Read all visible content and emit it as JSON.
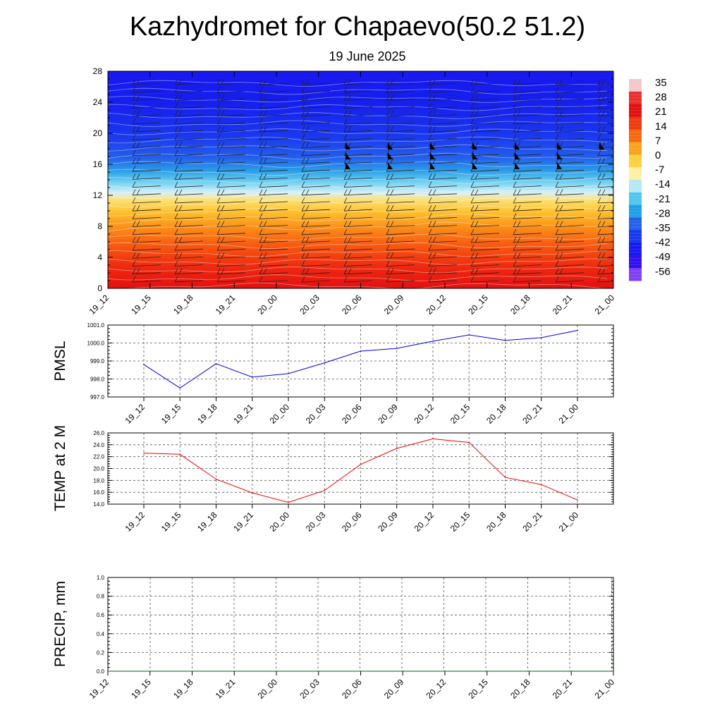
{
  "header": {
    "title": "Kazhydromet for Chapaevo(50.2 51.2)",
    "subtitle": "19 June 2025"
  },
  "time_labels": [
    "19_12",
    "19_15",
    "19_18",
    "19_21",
    "20_00",
    "20_03",
    "20_06",
    "20_09",
    "20_12",
    "20_15",
    "20_18",
    "20_21",
    "21_00"
  ],
  "chart_data": [
    {
      "type": "heatmap",
      "panel": "temperature-cross-section",
      "xlabel": "",
      "ylabel": "",
      "y_ticks": [
        0,
        4,
        8,
        12,
        16,
        20,
        24,
        28
      ],
      "ylim": [
        0,
        28
      ],
      "colorbar_labels": [
        "35",
        "28",
        "21",
        "14",
        "7",
        "0",
        "-7",
        "-14",
        "-21",
        "-28",
        "-35",
        "-42",
        "-49",
        "-56"
      ],
      "colorbar_colors": [
        "#f2c8c8",
        "#e83030",
        "#e01010",
        "#ee3a10",
        "#f86810",
        "#fba020",
        "#ffd040",
        "#fff0a0",
        "#b6e8f4",
        "#50c8ee",
        "#20a0e6",
        "#2460e8",
        "#1838ee",
        "#1818ee",
        "#3010f0",
        "#8040f0"
      ],
      "wind_barbs": true
    },
    {
      "type": "line",
      "panel": "pmsl",
      "ylabel": "PMSL",
      "ylim": [
        997.0,
        1001.0
      ],
      "y_ticks": [
        "997.0",
        "998.0",
        "999.0",
        "1000.0",
        "1001.0"
      ],
      "categories": [
        "19_12",
        "19_15",
        "19_18",
        "19_21",
        "20_00",
        "20_03",
        "20_06",
        "20_09",
        "20_12",
        "20_15",
        "20_18",
        "20_21",
        "21_00"
      ],
      "values": [
        998.8,
        997.5,
        998.85,
        998.1,
        998.3,
        998.9,
        999.55,
        999.7,
        1000.1,
        1000.45,
        1000.15,
        1000.3,
        1000.7
      ],
      "color": "#0000ee"
    },
    {
      "type": "line",
      "panel": "temp2m",
      "ylabel": "TEMP at 2 M",
      "ylim": [
        14.0,
        26.0
      ],
      "y_ticks": [
        "14.0",
        "16.0",
        "18.0",
        "20.0",
        "22.0",
        "24.0",
        "26.0"
      ],
      "categories": [
        "19_12",
        "19_15",
        "19_18",
        "19_21",
        "20_00",
        "20_03",
        "20_06",
        "20_09",
        "20_12",
        "20_15",
        "20_18",
        "20_21",
        "21_00"
      ],
      "values": [
        22.6,
        22.4,
        18.2,
        15.9,
        14.3,
        16.3,
        20.7,
        23.4,
        25.0,
        24.4,
        18.5,
        17.3,
        14.7
      ],
      "color": "#ee0000"
    },
    {
      "type": "line",
      "panel": "precip",
      "ylabel": "PRECIP, mm",
      "ylim": [
        0.0,
        1.0
      ],
      "y_ticks": [
        "0.0",
        "0.2",
        "0.4",
        "0.6",
        "0.8",
        "1.0"
      ],
      "categories": [
        "19_12",
        "19_15",
        "19_18",
        "19_21",
        "20_00",
        "20_03",
        "20_06",
        "20_09",
        "20_12",
        "20_15",
        "20_18",
        "20_21",
        "21_00"
      ],
      "values": [
        0,
        0,
        0,
        0,
        0,
        0,
        0,
        0,
        0,
        0,
        0,
        0,
        0
      ],
      "color": "#006400"
    }
  ]
}
